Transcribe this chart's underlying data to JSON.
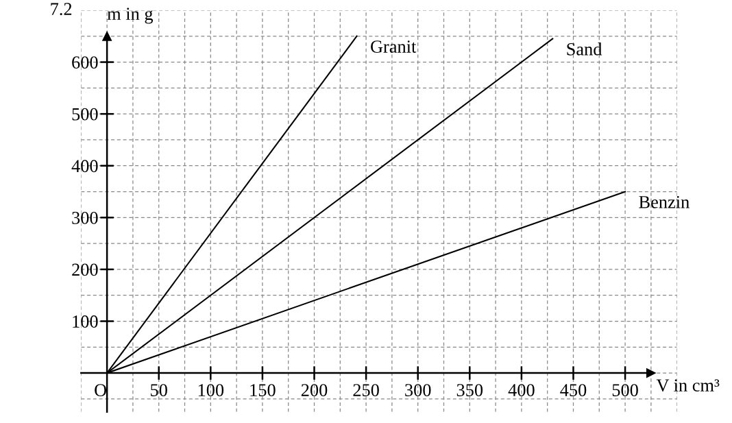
{
  "chart_data": {
    "type": "line",
    "annotations": [
      "7.2"
    ],
    "xlabel": "V in cm³",
    "ylabel": "m in g",
    "series": [
      {
        "name": "Granit",
        "color": "#000000",
        "x": [
          0,
          241
        ],
        "values": [
          0,
          650
        ]
      },
      {
        "name": "Sand",
        "color": "#000000",
        "x": [
          0,
          430
        ],
        "values": [
          0,
          645
        ]
      },
      {
        "name": "Benzin",
        "color": "#000000",
        "x": [
          0,
          500
        ],
        "values": [
          0,
          350
        ]
      }
    ],
    "xlim": [
      -25,
      550
    ],
    "ylim": [
      -75,
      700
    ],
    "xticks": [
      {
        "value": 0,
        "label": "O"
      },
      50,
      100,
      150,
      200,
      250,
      300,
      350,
      400,
      450,
      500
    ],
    "yticks": [
      100,
      200,
      300,
      400,
      500,
      600
    ],
    "grid": true,
    "legend": false,
    "marker": "none",
    "line_style": "solid"
  }
}
